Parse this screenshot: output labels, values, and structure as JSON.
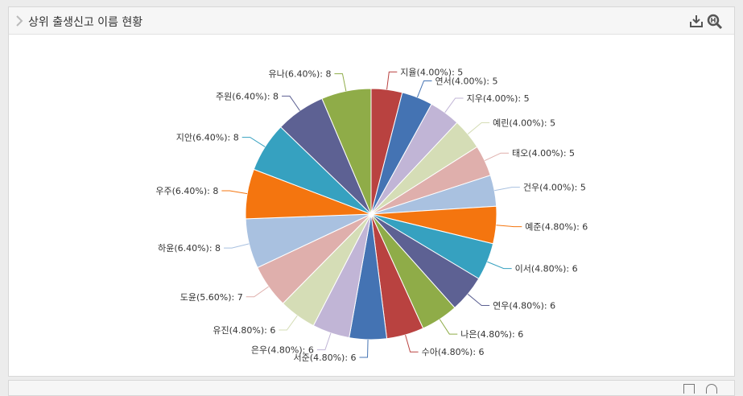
{
  "panel": {
    "title": "상위 출생신고 이름 현황"
  },
  "icons": {
    "download": "download-icon",
    "zoom": "zoom-icon",
    "chevron": "chevron-right-icon"
  },
  "chart_data": {
    "type": "pie",
    "title": "상위 출생신고 이름 현황",
    "slices": [
      {
        "name": "지율",
        "percent": "4.00%",
        "value": 5,
        "color": "#b94240"
      },
      {
        "name": "연서",
        "percent": "4.00%",
        "value": 5,
        "color": "#4473b3"
      },
      {
        "name": "지우",
        "percent": "4.00%",
        "value": 5,
        "color": "#c1b5d6"
      },
      {
        "name": "예린",
        "percent": "4.00%",
        "value": 5,
        "color": "#d5ddb6"
      },
      {
        "name": "태오",
        "percent": "4.00%",
        "value": 5,
        "color": "#dfafac"
      },
      {
        "name": "건우",
        "percent": "4.00%",
        "value": 5,
        "color": "#a9c1e0"
      },
      {
        "name": "예준",
        "percent": "4.80%",
        "value": 6,
        "color": "#f4750f"
      },
      {
        "name": "이서",
        "percent": "4.80%",
        "value": 6,
        "color": "#36a1c0"
      },
      {
        "name": "연우",
        "percent": "4.80%",
        "value": 6,
        "color": "#5d6193"
      },
      {
        "name": "나은",
        "percent": "4.80%",
        "value": 6,
        "color": "#8fac48"
      },
      {
        "name": "수아",
        "percent": "4.80%",
        "value": 6,
        "color": "#b94240"
      },
      {
        "name": "서준",
        "percent": "4.80%",
        "value": 6,
        "color": "#4473b3"
      },
      {
        "name": "은우",
        "percent": "4.80%",
        "value": 6,
        "color": "#c1b5d6"
      },
      {
        "name": "유진",
        "percent": "4.80%",
        "value": 6,
        "color": "#d5ddb6"
      },
      {
        "name": "도윤",
        "percent": "5.60%",
        "value": 7,
        "color": "#dfafac"
      },
      {
        "name": "하윤",
        "percent": "6.40%",
        "value": 8,
        "color": "#a9c1e0"
      },
      {
        "name": "우주",
        "percent": "6.40%",
        "value": 8,
        "color": "#f4750f"
      },
      {
        "name": "지안",
        "percent": "6.40%",
        "value": 8,
        "color": "#36a1c0"
      },
      {
        "name": "주원",
        "percent": "6.40%",
        "value": 8,
        "color": "#5d6193"
      },
      {
        "name": "유나",
        "percent": "6.40%",
        "value": 8,
        "color": "#8fac48"
      }
    ]
  }
}
